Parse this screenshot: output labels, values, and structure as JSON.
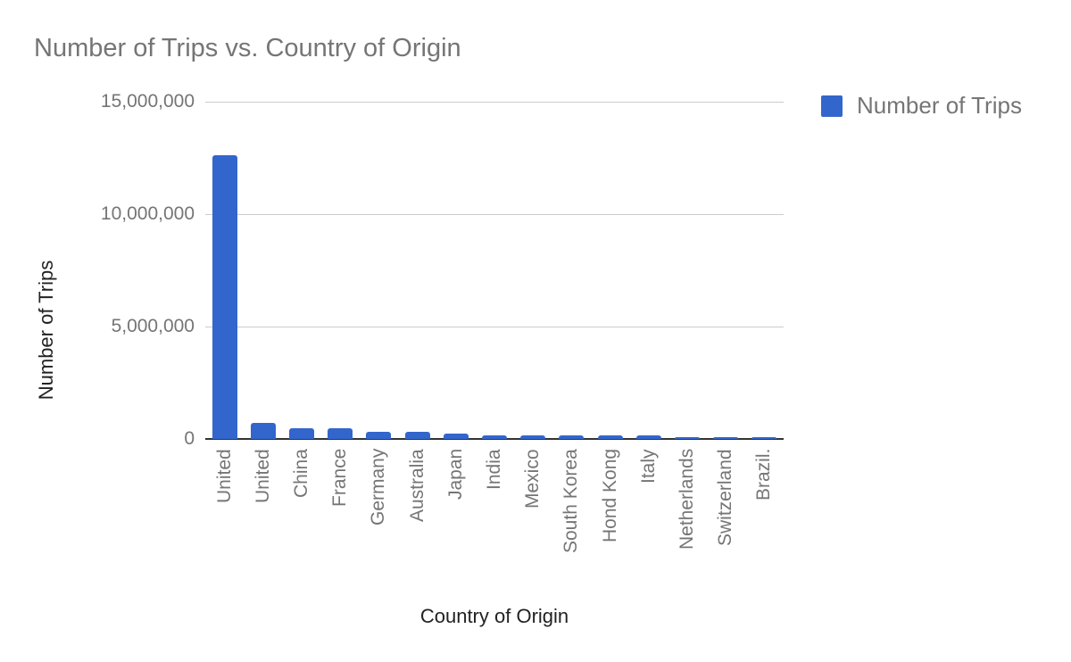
{
  "chart_data": {
    "type": "bar",
    "title": "Number of Trips vs. Country of Origin",
    "xlabel": "Country of Origin",
    "ylabel": "Number of Trips",
    "ylim": [
      0,
      15000000
    ],
    "yticks": [
      "0",
      "5,000,000",
      "10,000,000",
      "15,000,000"
    ],
    "grid": true,
    "legend_position": "right",
    "categories": [
      "United",
      "United",
      "China",
      "France",
      "Germany",
      "Australia",
      "Japan",
      "India",
      "Mexico",
      "South Korea",
      "Hond Kong",
      "Italy",
      "Netherlands",
      "Switzerland",
      "Brazil."
    ],
    "series": [
      {
        "name": "Number of Trips",
        "color": "#3366cc",
        "values": [
          12600000,
          710000,
          480000,
          480000,
          320000,
          320000,
          240000,
          160000,
          160000,
          160000,
          160000,
          160000,
          90000,
          90000,
          90000
        ]
      }
    ]
  }
}
